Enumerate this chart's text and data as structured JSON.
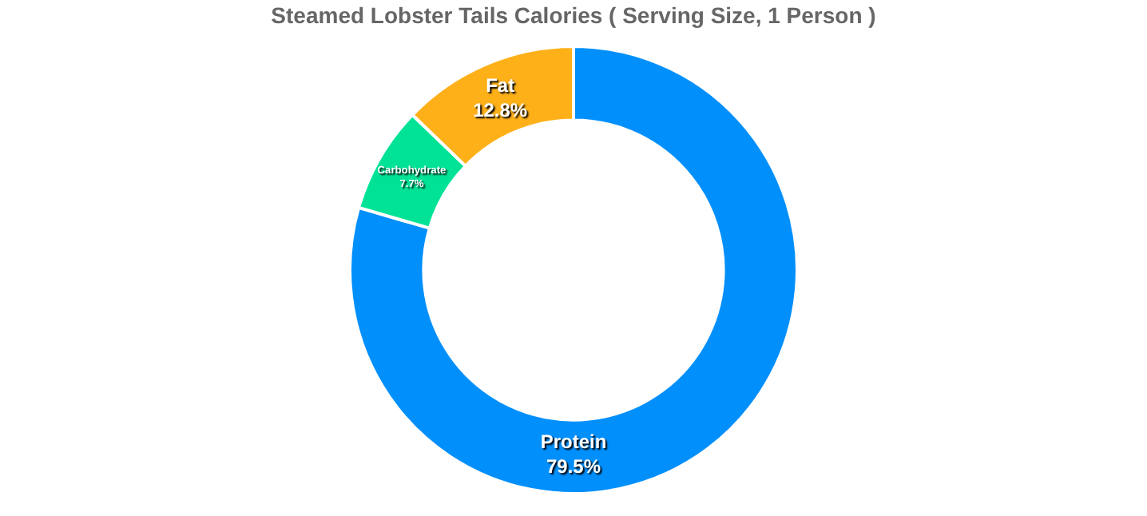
{
  "chart_data": {
    "type": "donut",
    "title": "Steamed Lobster Tails Calories ( Serving Size, 1 Person )",
    "categories": [
      "Protein",
      "Carbohydrate",
      "Fat"
    ],
    "values": [
      79.5,
      7.7,
      12.8
    ],
    "colors": [
      "#008ffb",
      "#00e396",
      "#feb019"
    ],
    "value_labels": [
      "79.5%",
      "7.7%",
      "12.8%"
    ],
    "legend": false
  }
}
